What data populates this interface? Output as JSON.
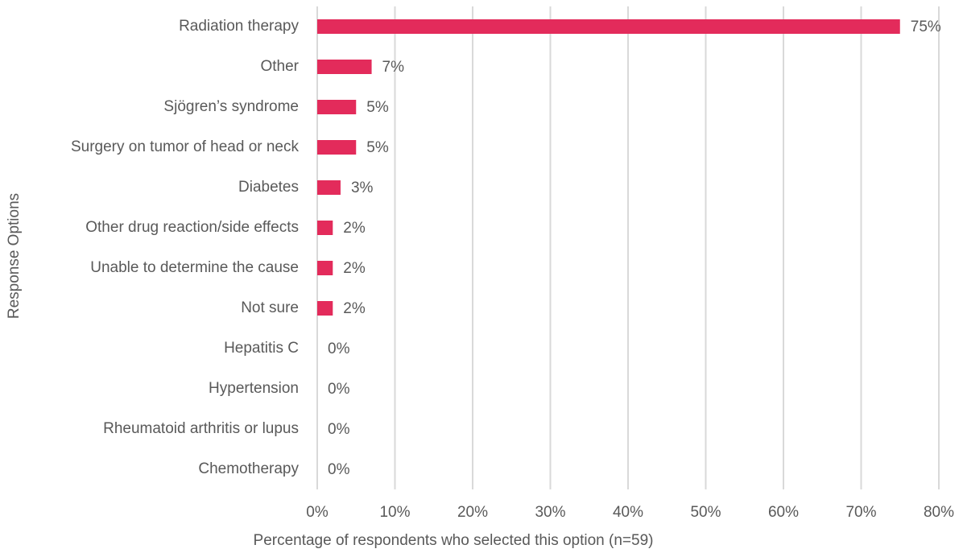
{
  "chart_data": {
    "type": "hbar",
    "xlabel": "Percentage of respondents who selected this option (n=59)",
    "ylabel": "Response Options",
    "categories": [
      "Radiation therapy",
      "Other",
      "Sjögren’s syndrome",
      "Surgery on tumor of head or neck",
      "Diabetes",
      "Other drug reaction/side effects",
      "Unable to determine the cause",
      "Not sure",
      "Hepatitis C",
      "Hypertension",
      "Rheumatoid arthritis or lupus",
      "Chemotherapy"
    ],
    "values": [
      75,
      7,
      5,
      5,
      3,
      2,
      2,
      2,
      0,
      0,
      0,
      0
    ],
    "value_labels": [
      "75%",
      "7%",
      "5%",
      "5%",
      "3%",
      "2%",
      "2%",
      "2%",
      "0%",
      "0%",
      "0%",
      "0%"
    ],
    "color": "#e32b5b",
    "xlim": [
      0,
      80
    ],
    "xticks": [
      {
        "value": 0,
        "label": "0%"
      },
      {
        "value": 10,
        "label": "10%"
      },
      {
        "value": 20,
        "label": "20%"
      },
      {
        "value": 30,
        "label": "30%"
      },
      {
        "value": 40,
        "label": "40%"
      },
      {
        "value": 50,
        "label": "50%"
      },
      {
        "value": 60,
        "label": "60%"
      },
      {
        "value": 70,
        "label": "70%"
      },
      {
        "value": 80,
        "label": "80%"
      }
    ],
    "grid": true
  }
}
